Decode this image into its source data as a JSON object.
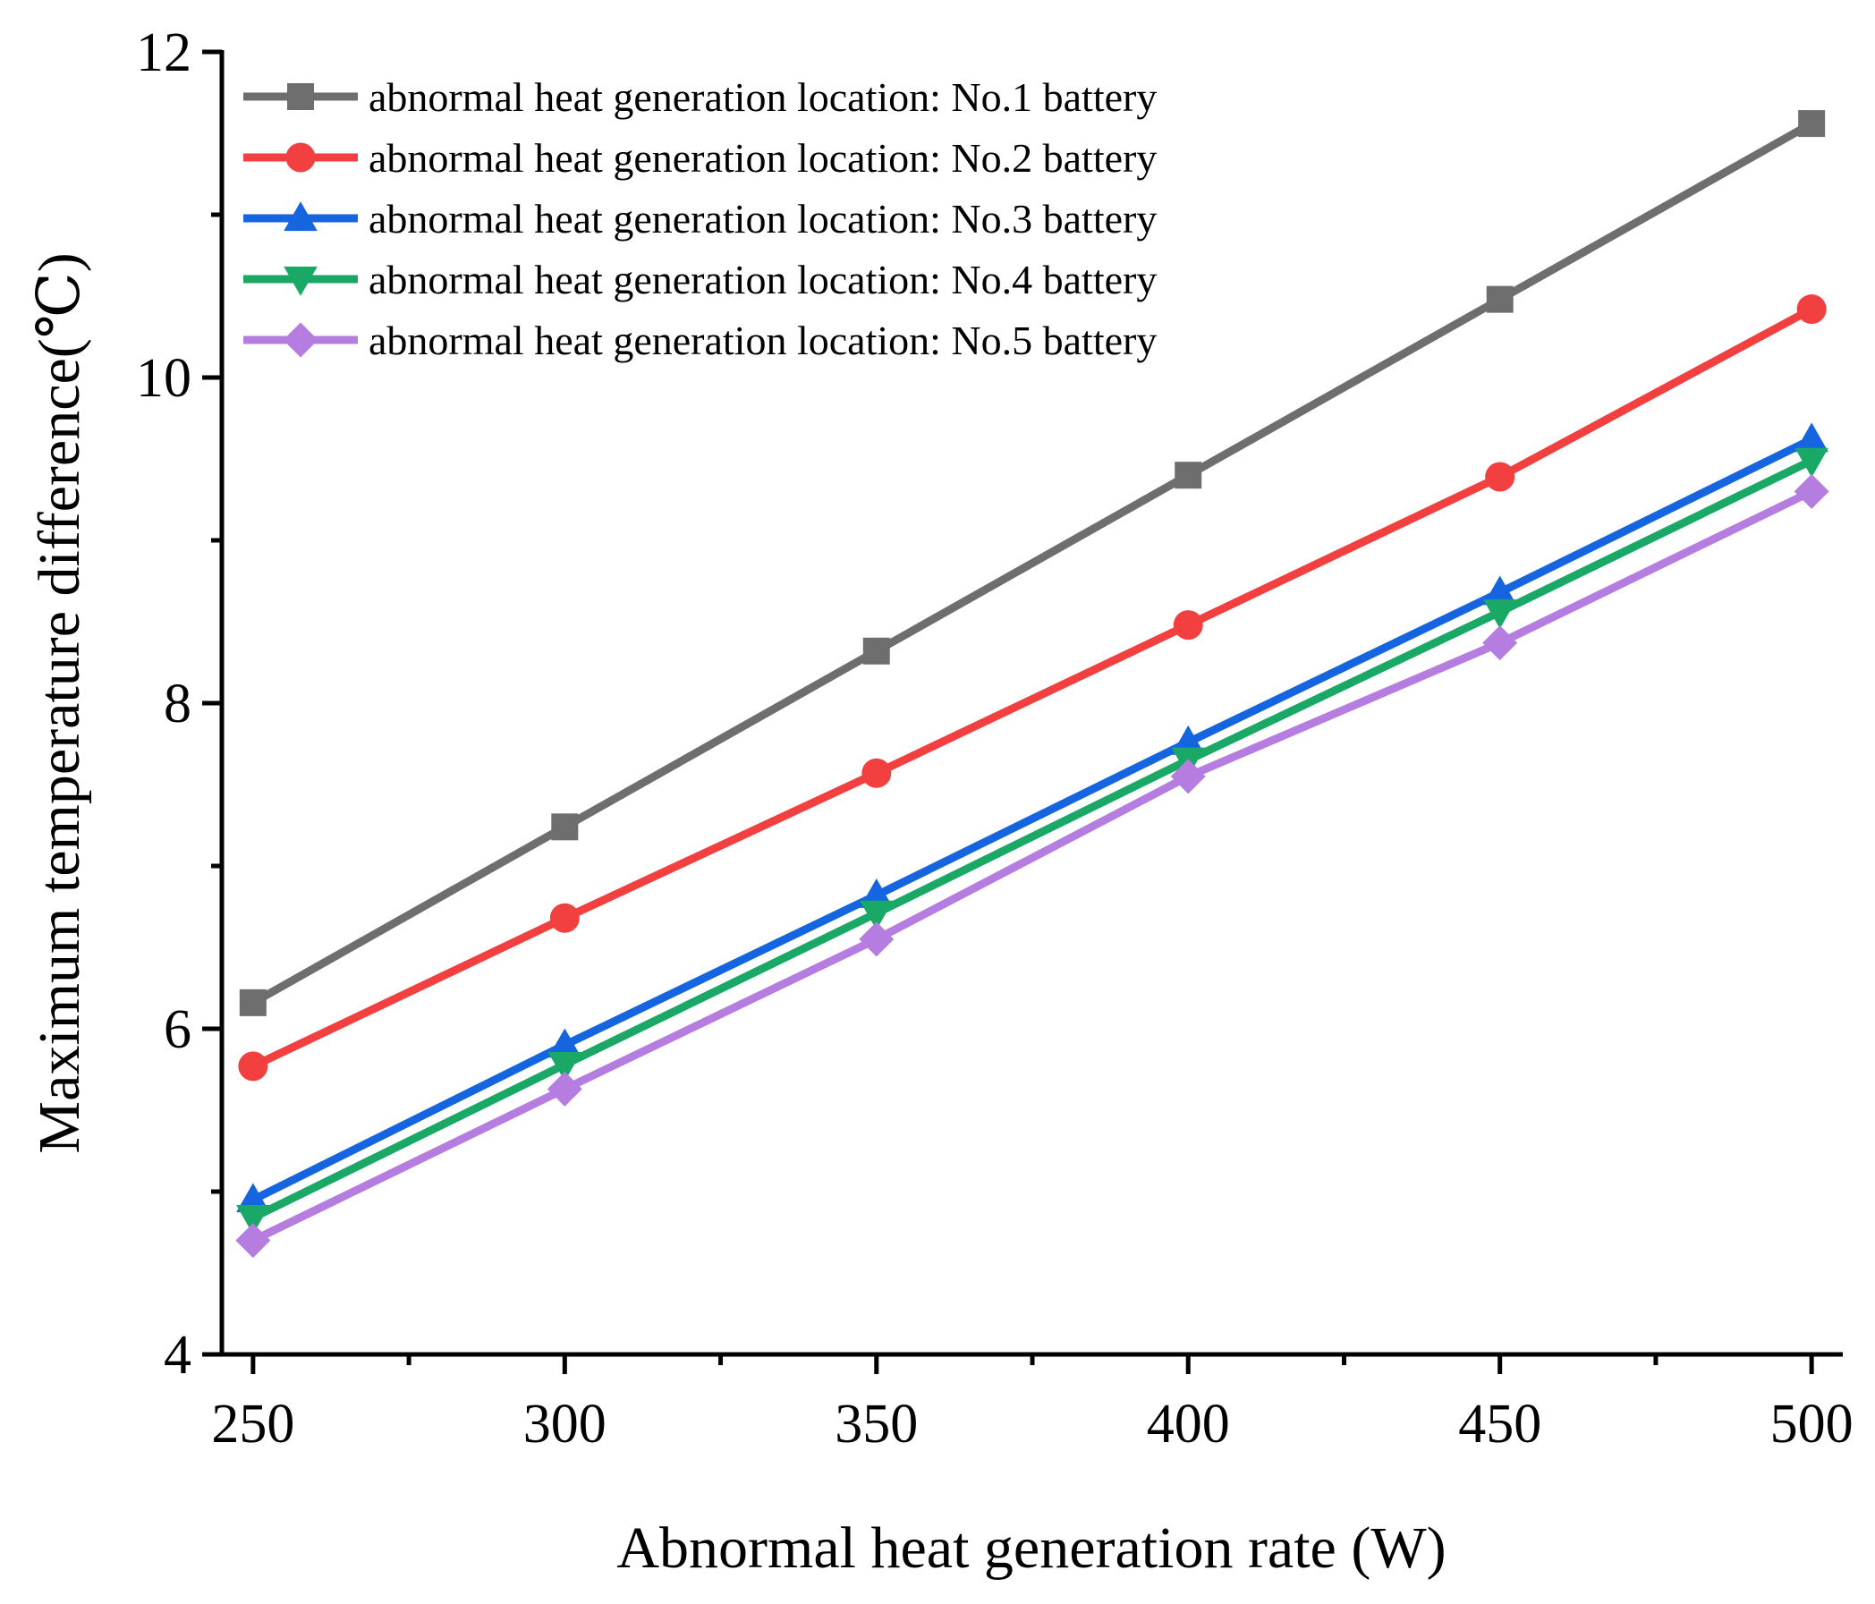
{
  "chart_data": {
    "type": "line",
    "title": "",
    "xlabel": "Abnormal heat generation rate (W)",
    "ylabel": "Maximum temperature difference(℃)",
    "x": [
      250,
      300,
      350,
      400,
      450,
      500
    ],
    "xlim": [
      245,
      505
    ],
    "ylim": [
      4,
      12
    ],
    "xticks": [
      250,
      300,
      350,
      400,
      450,
      500
    ],
    "yticks": [
      4,
      6,
      8,
      10,
      12
    ],
    "grid": false,
    "legend_position": "top-left",
    "series": [
      {
        "name": "abnormal heat generation location: No.1 battery",
        "color": "#6e6e6e",
        "marker": "square",
        "values": [
          6.16,
          7.24,
          8.32,
          9.4,
          10.48,
          11.56
        ]
      },
      {
        "name": "abnormal heat generation location: No.2 battery",
        "color": "#f23f3f",
        "marker": "circle",
        "values": [
          5.77,
          6.68,
          7.57,
          8.48,
          9.39,
          10.42
        ]
      },
      {
        "name": "abnormal heat generation location: No.3 battery",
        "color": "#1565e0",
        "marker": "triangle-up",
        "values": [
          4.95,
          5.9,
          6.82,
          7.76,
          8.68,
          9.62
        ]
      },
      {
        "name": "abnormal heat generation location: No.4 battery",
        "color": "#1aa866",
        "marker": "triangle-down",
        "values": [
          4.84,
          5.78,
          6.71,
          7.65,
          8.56,
          9.49
        ]
      },
      {
        "name": "abnormal heat generation location: No.5 battery",
        "color": "#b57de0",
        "marker": "diamond",
        "values": [
          4.7,
          5.63,
          6.55,
          7.55,
          8.37,
          9.3
        ]
      }
    ]
  }
}
